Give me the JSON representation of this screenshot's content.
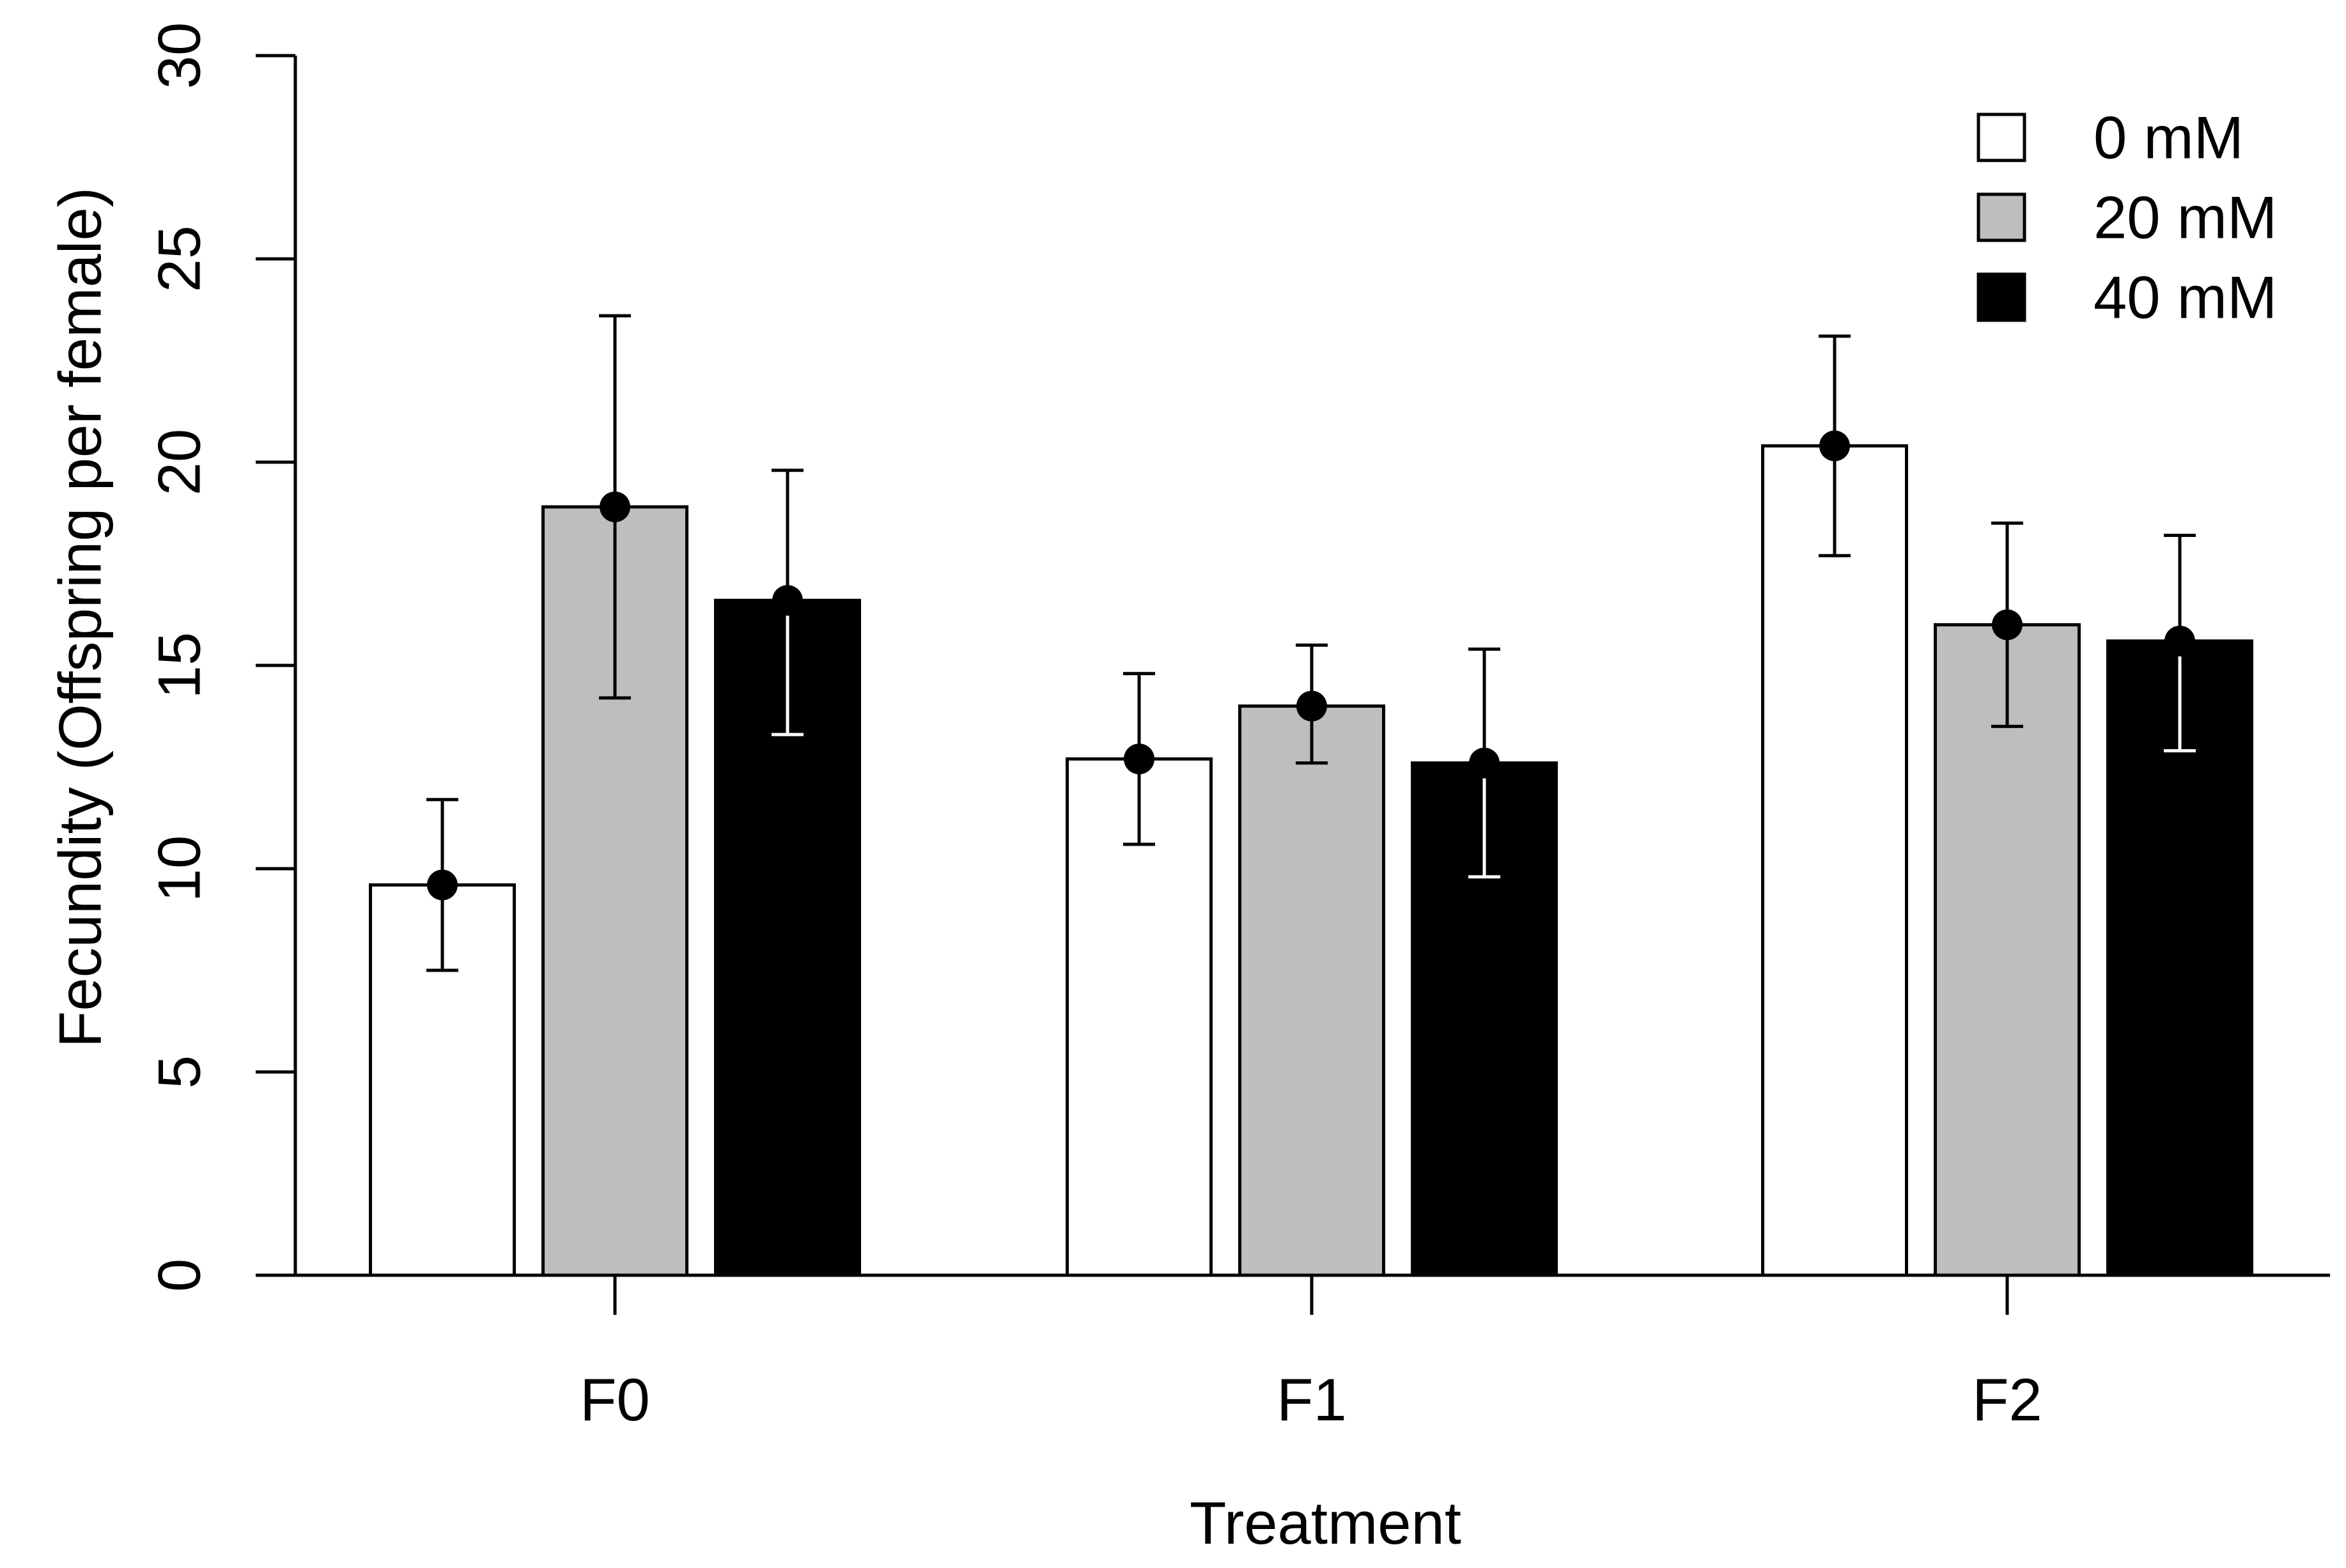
{
  "chart_data": {
    "type": "bar",
    "title": "",
    "xlabel": "Treatment",
    "ylabel": "Fecundity (Offspring per female)",
    "ylim": [
      0,
      30
    ],
    "yticks": [
      0,
      5,
      10,
      15,
      20,
      25,
      30
    ],
    "grid": false,
    "legend_position": "top-right",
    "categories": [
      "F0",
      "F1",
      "F2"
    ],
    "series": [
      {
        "name": "0 mM",
        "color": "#ffffff",
        "values": [
          9.6,
          12.7,
          20.4
        ],
        "upper": [
          11.7,
          14.8,
          23.1
        ],
        "lower": [
          7.5,
          10.6,
          17.7
        ]
      },
      {
        "name": "20 mM",
        "color": "#bebebe",
        "values": [
          18.9,
          14.0,
          16.0
        ],
        "upper": [
          23.6,
          15.5,
          18.5
        ],
        "lower": [
          14.2,
          12.6,
          13.5
        ]
      },
      {
        "name": "40 mM",
        "color": "#000000",
        "values": [
          16.6,
          12.6,
          15.6
        ],
        "upper": [
          19.8,
          15.4,
          18.2
        ],
        "lower": [
          13.3,
          9.8,
          12.9
        ]
      }
    ]
  }
}
